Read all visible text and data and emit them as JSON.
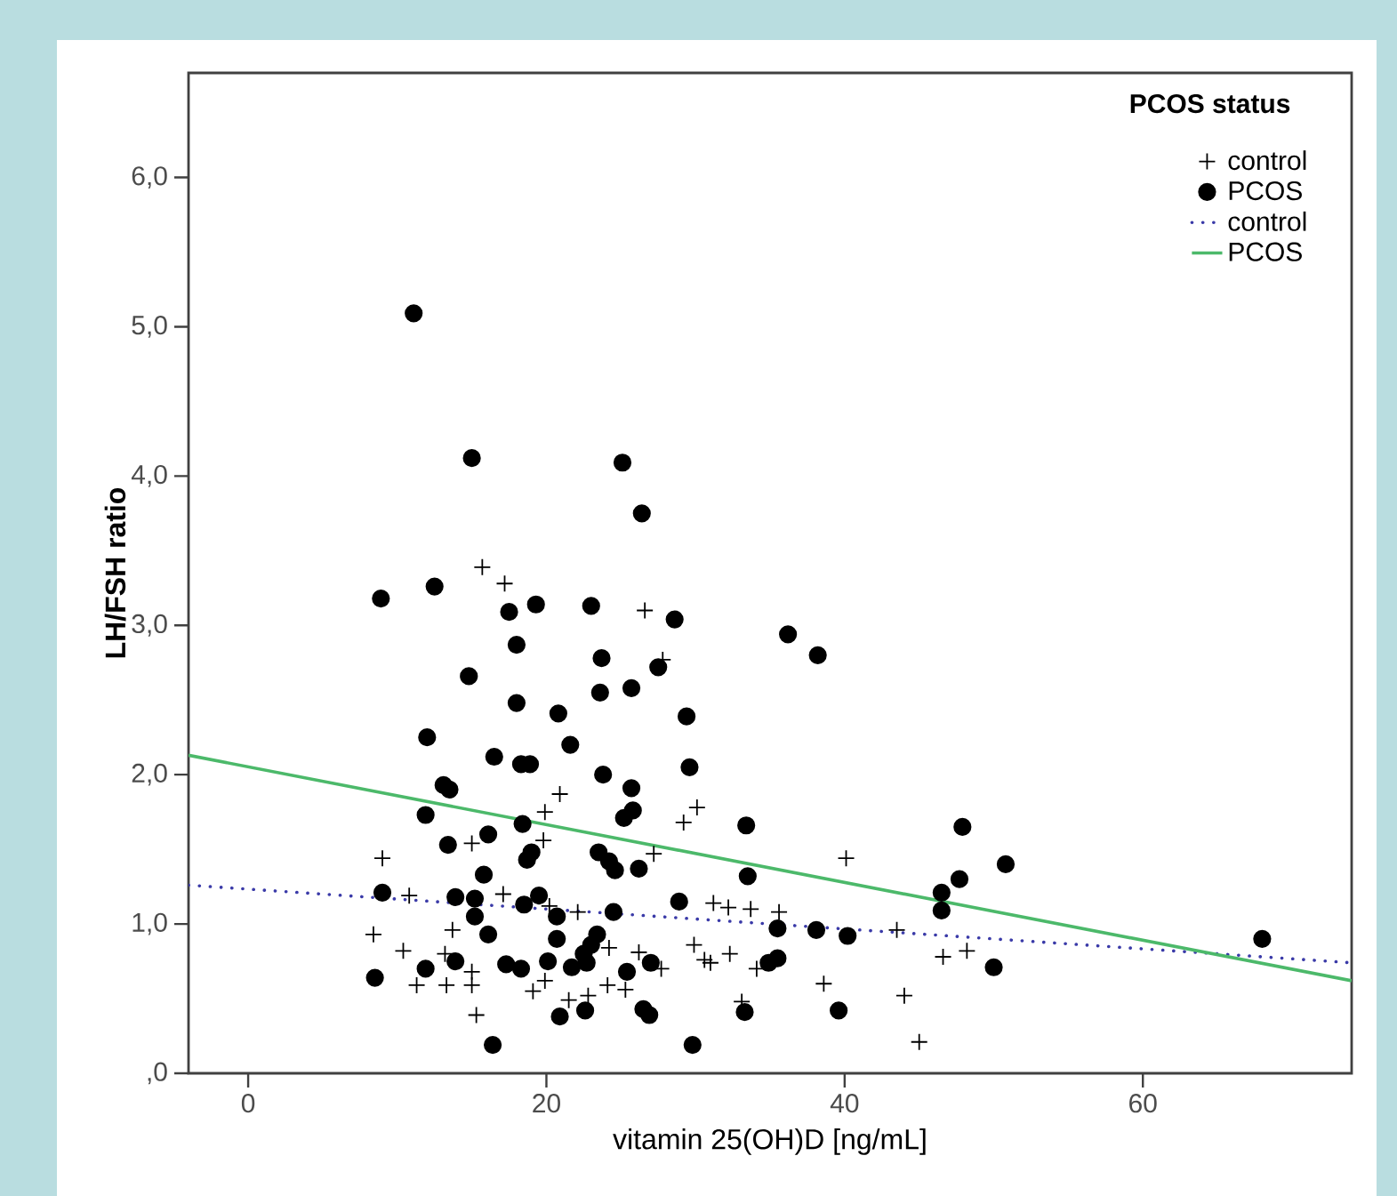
{
  "chart_data": {
    "type": "scatter",
    "xlabel": "vitamin 25(OH)D [ng/mL]",
    "ylabel": "LH/FSH ratio",
    "legend_title": "PCOS status",
    "legend": "top right",
    "grid": false,
    "xlim": [
      -4,
      74
    ],
    "xticks": [
      0,
      20,
      40,
      60
    ],
    "ylim": [
      0,
      6.7
    ],
    "yticks": [
      {
        "value": 0,
        "label": ",0"
      },
      {
        "value": 1,
        "label": "1,0"
      },
      {
        "value": 2,
        "label": "2,0"
      },
      {
        "value": 3,
        "label": "3,0"
      },
      {
        "value": 4,
        "label": "4,0"
      },
      {
        "value": 5,
        "label": "5,0"
      },
      {
        "value": 6,
        "label": "6,0"
      }
    ],
    "series": [
      {
        "name": "control",
        "marker": "cross",
        "color": "#000000",
        "x": [
          15.7,
          17.2,
          26.6,
          27.8,
          20.9,
          19.9,
          30.1,
          29.2,
          19.8,
          15.0,
          27.2,
          9.0,
          40.1,
          10.8,
          17.1,
          20.2,
          22.1,
          31.2,
          32.2,
          33.7,
          35.6,
          13.7,
          8.4,
          43.5,
          29.9,
          10.4,
          32.3,
          30.6,
          31.0,
          34.1,
          46.6,
          48.2,
          26.2,
          24.2,
          13.2,
          13.3,
          11.3,
          15.0,
          15.0,
          19.1,
          19.9,
          24.1,
          21.5,
          22.8,
          25.3,
          38.6,
          44.0,
          15.3,
          45.0,
          33.1,
          27.7
        ],
        "values": [
          3.39,
          3.28,
          3.1,
          2.77,
          1.87,
          1.75,
          1.78,
          1.68,
          1.56,
          1.54,
          1.47,
          1.44,
          1.44,
          1.19,
          1.2,
          1.12,
          1.08,
          1.14,
          1.11,
          1.1,
          1.08,
          0.96,
          0.93,
          0.96,
          0.86,
          0.82,
          0.8,
          0.76,
          0.74,
          0.7,
          0.78,
          0.82,
          0.81,
          0.84,
          0.8,
          0.59,
          0.59,
          0.59,
          0.68,
          0.55,
          0.62,
          0.59,
          0.49,
          0.52,
          0.56,
          0.6,
          0.52,
          0.39,
          0.21,
          0.48,
          0.7
        ]
      },
      {
        "name": "PCOS",
        "marker": "circle",
        "color": "#000000",
        "x": [
          11.1,
          15.0,
          25.1,
          26.4,
          8.9,
          12.5,
          17.5,
          19.3,
          23.0,
          28.6,
          18.0,
          23.7,
          14.8,
          23.6,
          25.7,
          27.5,
          18.0,
          20.8,
          29.4,
          12.0,
          21.6,
          16.5,
          18.3,
          18.9,
          29.6,
          23.8,
          13.1,
          13.5,
          25.7,
          11.9,
          25.8,
          25.2,
          33.4,
          18.4,
          16.1,
          47.9,
          13.4,
          18.7,
          19.0,
          23.5,
          24.2,
          24.6,
          26.2,
          50.8,
          15.8,
          33.5,
          36.2,
          38.2,
          47.7,
          9.0,
          13.9,
          15.2,
          19.5,
          46.5,
          46.5,
          28.9,
          18.5,
          15.2,
          16.1,
          24.5,
          20.7,
          35.5,
          38.1,
          40.2,
          68.0,
          23.4,
          20.7,
          23.0,
          22.5,
          22.7,
          13.9,
          11.9,
          17.3,
          18.3,
          20.1,
          21.7,
          27.0,
          25.4,
          34.9,
          35.5,
          50.0,
          8.5,
          22.6,
          20.9,
          26.5,
          26.9,
          33.3,
          39.6,
          16.4,
          29.8
        ],
        "values": [
          5.09,
          4.12,
          4.09,
          3.75,
          3.18,
          3.26,
          3.09,
          3.14,
          3.13,
          3.04,
          2.87,
          2.78,
          2.66,
          2.55,
          2.58,
          2.72,
          2.48,
          2.41,
          2.39,
          2.25,
          2.2,
          2.12,
          2.07,
          2.07,
          2.05,
          2.0,
          1.93,
          1.9,
          1.91,
          1.73,
          1.76,
          1.71,
          1.66,
          1.67,
          1.6,
          1.65,
          1.53,
          1.43,
          1.48,
          1.48,
          1.42,
          1.36,
          1.37,
          1.4,
          1.33,
          1.32,
          2.94,
          2.8,
          1.3,
          1.21,
          1.18,
          1.17,
          1.19,
          1.21,
          1.09,
          1.15,
          1.13,
          1.05,
          0.93,
          1.08,
          1.05,
          0.97,
          0.96,
          0.92,
          0.9,
          0.93,
          0.9,
          0.86,
          0.8,
          0.74,
          0.75,
          0.7,
          0.73,
          0.7,
          0.75,
          0.71,
          0.74,
          0.68,
          0.74,
          0.77,
          0.71,
          0.64,
          0.42,
          0.38,
          0.43,
          0.39,
          0.41,
          0.42,
          0.19,
          0.19
        ]
      },
      {
        "name": "control",
        "type": "line",
        "marker": "none",
        "line_style": "dotted",
        "color": "#3a3aa8",
        "x": [
          -4,
          74
        ],
        "values": [
          1.26,
          0.74
        ]
      },
      {
        "name": "PCOS",
        "type": "line",
        "marker": "none",
        "line_style": "solid",
        "color": "#4cb96a",
        "x": [
          -4,
          74
        ],
        "values": [
          2.13,
          0.62
        ]
      }
    ]
  }
}
